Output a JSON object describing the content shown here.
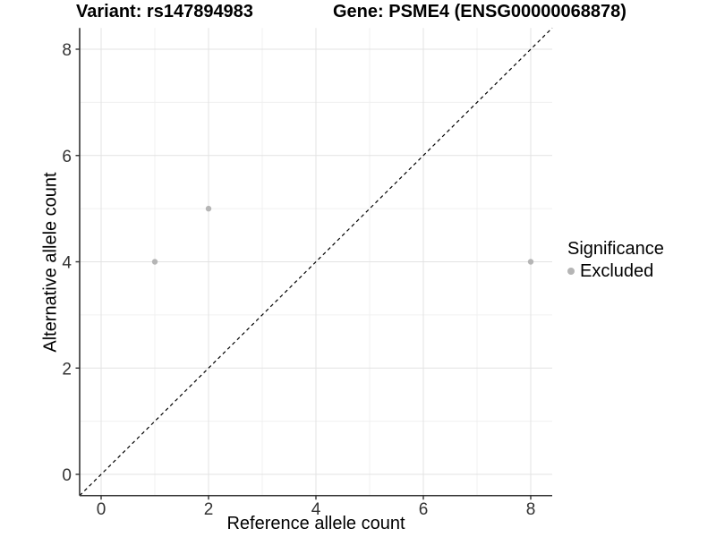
{
  "titles": {
    "variant": "Variant: rs147894983",
    "gene": "Gene: PSME4 (ENSG00000068878)"
  },
  "chart_data": {
    "type": "scatter",
    "title_left": "Variant: rs147894983",
    "title_right": "Gene: PSME4 (ENSG00000068878)",
    "xlabel": "Reference allele count",
    "ylabel": "Alternative allele count",
    "xlim": [
      -0.4,
      8.4
    ],
    "ylim": [
      -0.4,
      8.4
    ],
    "x_ticks": [
      0,
      2,
      4,
      6,
      8
    ],
    "y_ticks": [
      0,
      2,
      4,
      6,
      8
    ],
    "x_minor_ticks": [
      1,
      3,
      5,
      7
    ],
    "y_minor_ticks": [
      1,
      3,
      5,
      7
    ],
    "grid": true,
    "reference_line": {
      "type": "abline",
      "slope": 1,
      "intercept": 0,
      "style": "dashed",
      "color": "#000000",
      "dash": "4 3.5"
    },
    "series": [
      {
        "name": "Excluded",
        "color": "#b5b5b5",
        "points": [
          {
            "x": 1,
            "y": 4
          },
          {
            "x": 2,
            "y": 5
          },
          {
            "x": 8,
            "y": 4
          }
        ]
      }
    ],
    "legend": {
      "title": "Significance",
      "position": "right",
      "items": [
        {
          "label": "Excluded",
          "color": "#b5b5b5"
        }
      ]
    },
    "style": {
      "grid_major_color": "#e3e3e3",
      "grid_minor_color": "#f0f0f0",
      "axis_color": "#333333",
      "tick_label_color": "#333333",
      "point_radius": 3.2,
      "tick_font_size": 19
    }
  }
}
